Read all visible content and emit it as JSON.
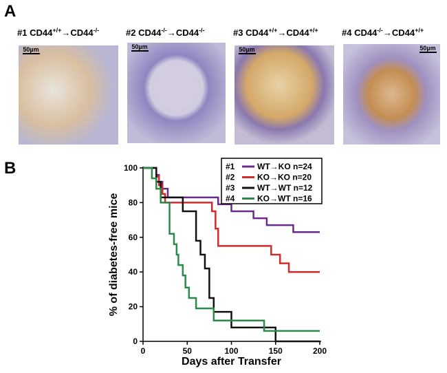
{
  "panel_a": {
    "label": "A",
    "panels": [
      {
        "title": [
          "#1 CD44",
          "+/+",
          "→CD44",
          "-/-"
        ],
        "scale": "50µm"
      },
      {
        "title": [
          "#2 CD44",
          "-/-",
          "→CD44",
          "-/-"
        ],
        "scale": "50µm"
      },
      {
        "title": [
          "#3 CD44",
          "+/+",
          "→CD44",
          "+/+"
        ],
        "scale": "50µm"
      },
      {
        "title": [
          "#4 CD44",
          "-/-",
          "→CD44",
          "+/+"
        ],
        "scale": "50µm"
      }
    ]
  },
  "chart_data": {
    "type": "step",
    "panel_label": "B",
    "xlabel": "Days after Transfer",
    "ylabel": "% of diabetes-free mice",
    "xlim": [
      0,
      200
    ],
    "ylim": [
      0,
      100
    ],
    "xticks": [
      0,
      50,
      100,
      150,
      200
    ],
    "yticks": [
      0,
      20,
      40,
      60,
      80,
      100
    ],
    "legend": "upper right",
    "series": [
      {
        "id": "#1",
        "name": "WT→KO n=24",
        "color": "#6a2a8a",
        "x": [
          0,
          15,
          18,
          22,
          28,
          85,
          100,
          125,
          140,
          170,
          200
        ],
        "values": [
          100,
          96,
          92,
          88,
          83,
          79,
          75,
          71,
          67,
          63,
          63
        ]
      },
      {
        "id": "#2",
        "name": "KO→KO n=20",
        "color": "#d42a2a",
        "x": [
          0,
          15,
          18,
          22,
          25,
          78,
          82,
          85,
          145,
          155,
          165,
          200
        ],
        "values": [
          100,
          95,
          90,
          85,
          80,
          75,
          65,
          55,
          50,
          45,
          40,
          40
        ]
      },
      {
        "id": "#3",
        "name": "WT→WT n=12",
        "color": "#111111",
        "x": [
          0,
          15,
          20,
          25,
          45,
          60,
          65,
          70,
          75,
          80,
          100,
          150,
          200
        ],
        "values": [
          100,
          92,
          83,
          83,
          75,
          58,
          50,
          42,
          25,
          17,
          8,
          0,
          0
        ]
      },
      {
        "id": "#4",
        "name": "KO→WT n=16",
        "color": "#2a8a4a",
        "x": [
          0,
          10,
          15,
          20,
          30,
          35,
          38,
          40,
          45,
          48,
          52,
          60,
          80,
          137,
          200
        ],
        "values": [
          100,
          94,
          88,
          80,
          62,
          56,
          50,
          44,
          38,
          31,
          25,
          19,
          12,
          6,
          6
        ]
      }
    ]
  }
}
